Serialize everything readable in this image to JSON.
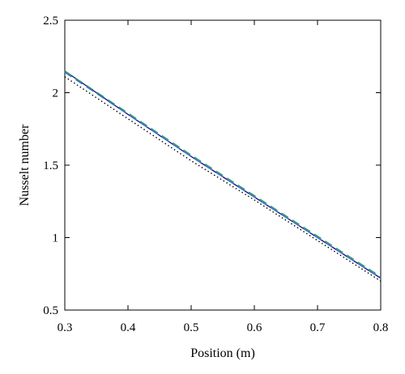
{
  "chart_data": {
    "type": "line",
    "xlabel": "Position (m)",
    "ylabel": "Nusselt number",
    "xlim": [
      0.3,
      0.8
    ],
    "ylim": [
      0.5,
      2.5
    ],
    "xticks": [
      "0.3",
      "0.4",
      "0.5",
      "0.6",
      "0.7",
      "0.8"
    ],
    "yticks": [
      "0.5",
      "1",
      "1.5",
      "2",
      "2.5"
    ],
    "grid": false,
    "legend": "none",
    "series": [
      {
        "color": "#1a1a8c",
        "style": "solid",
        "x": [
          0.3,
          0.4,
          0.5,
          0.6,
          0.7,
          0.8
        ],
        "y": [
          2.15,
          1.85,
          1.56,
          1.28,
          1.0,
          0.72
        ]
      },
      {
        "color": "#2e9e5e",
        "style": "dashed",
        "x": [
          0.3,
          0.4,
          0.5,
          0.6,
          0.7,
          0.8
        ],
        "y": [
          2.15,
          1.86,
          1.57,
          1.29,
          1.01,
          0.73
        ]
      },
      {
        "color": "#3b6fd6",
        "style": "dashed",
        "x": [
          0.3,
          0.4,
          0.5,
          0.6,
          0.7,
          0.8
        ],
        "y": [
          2.14,
          1.85,
          1.56,
          1.28,
          1.0,
          0.72
        ]
      },
      {
        "color": "#000000",
        "style": "dotted",
        "x": [
          0.3,
          0.4,
          0.5,
          0.6,
          0.7,
          0.8
        ],
        "y": [
          2.11,
          1.82,
          1.53,
          1.26,
          0.98,
          0.7
        ]
      }
    ]
  }
}
